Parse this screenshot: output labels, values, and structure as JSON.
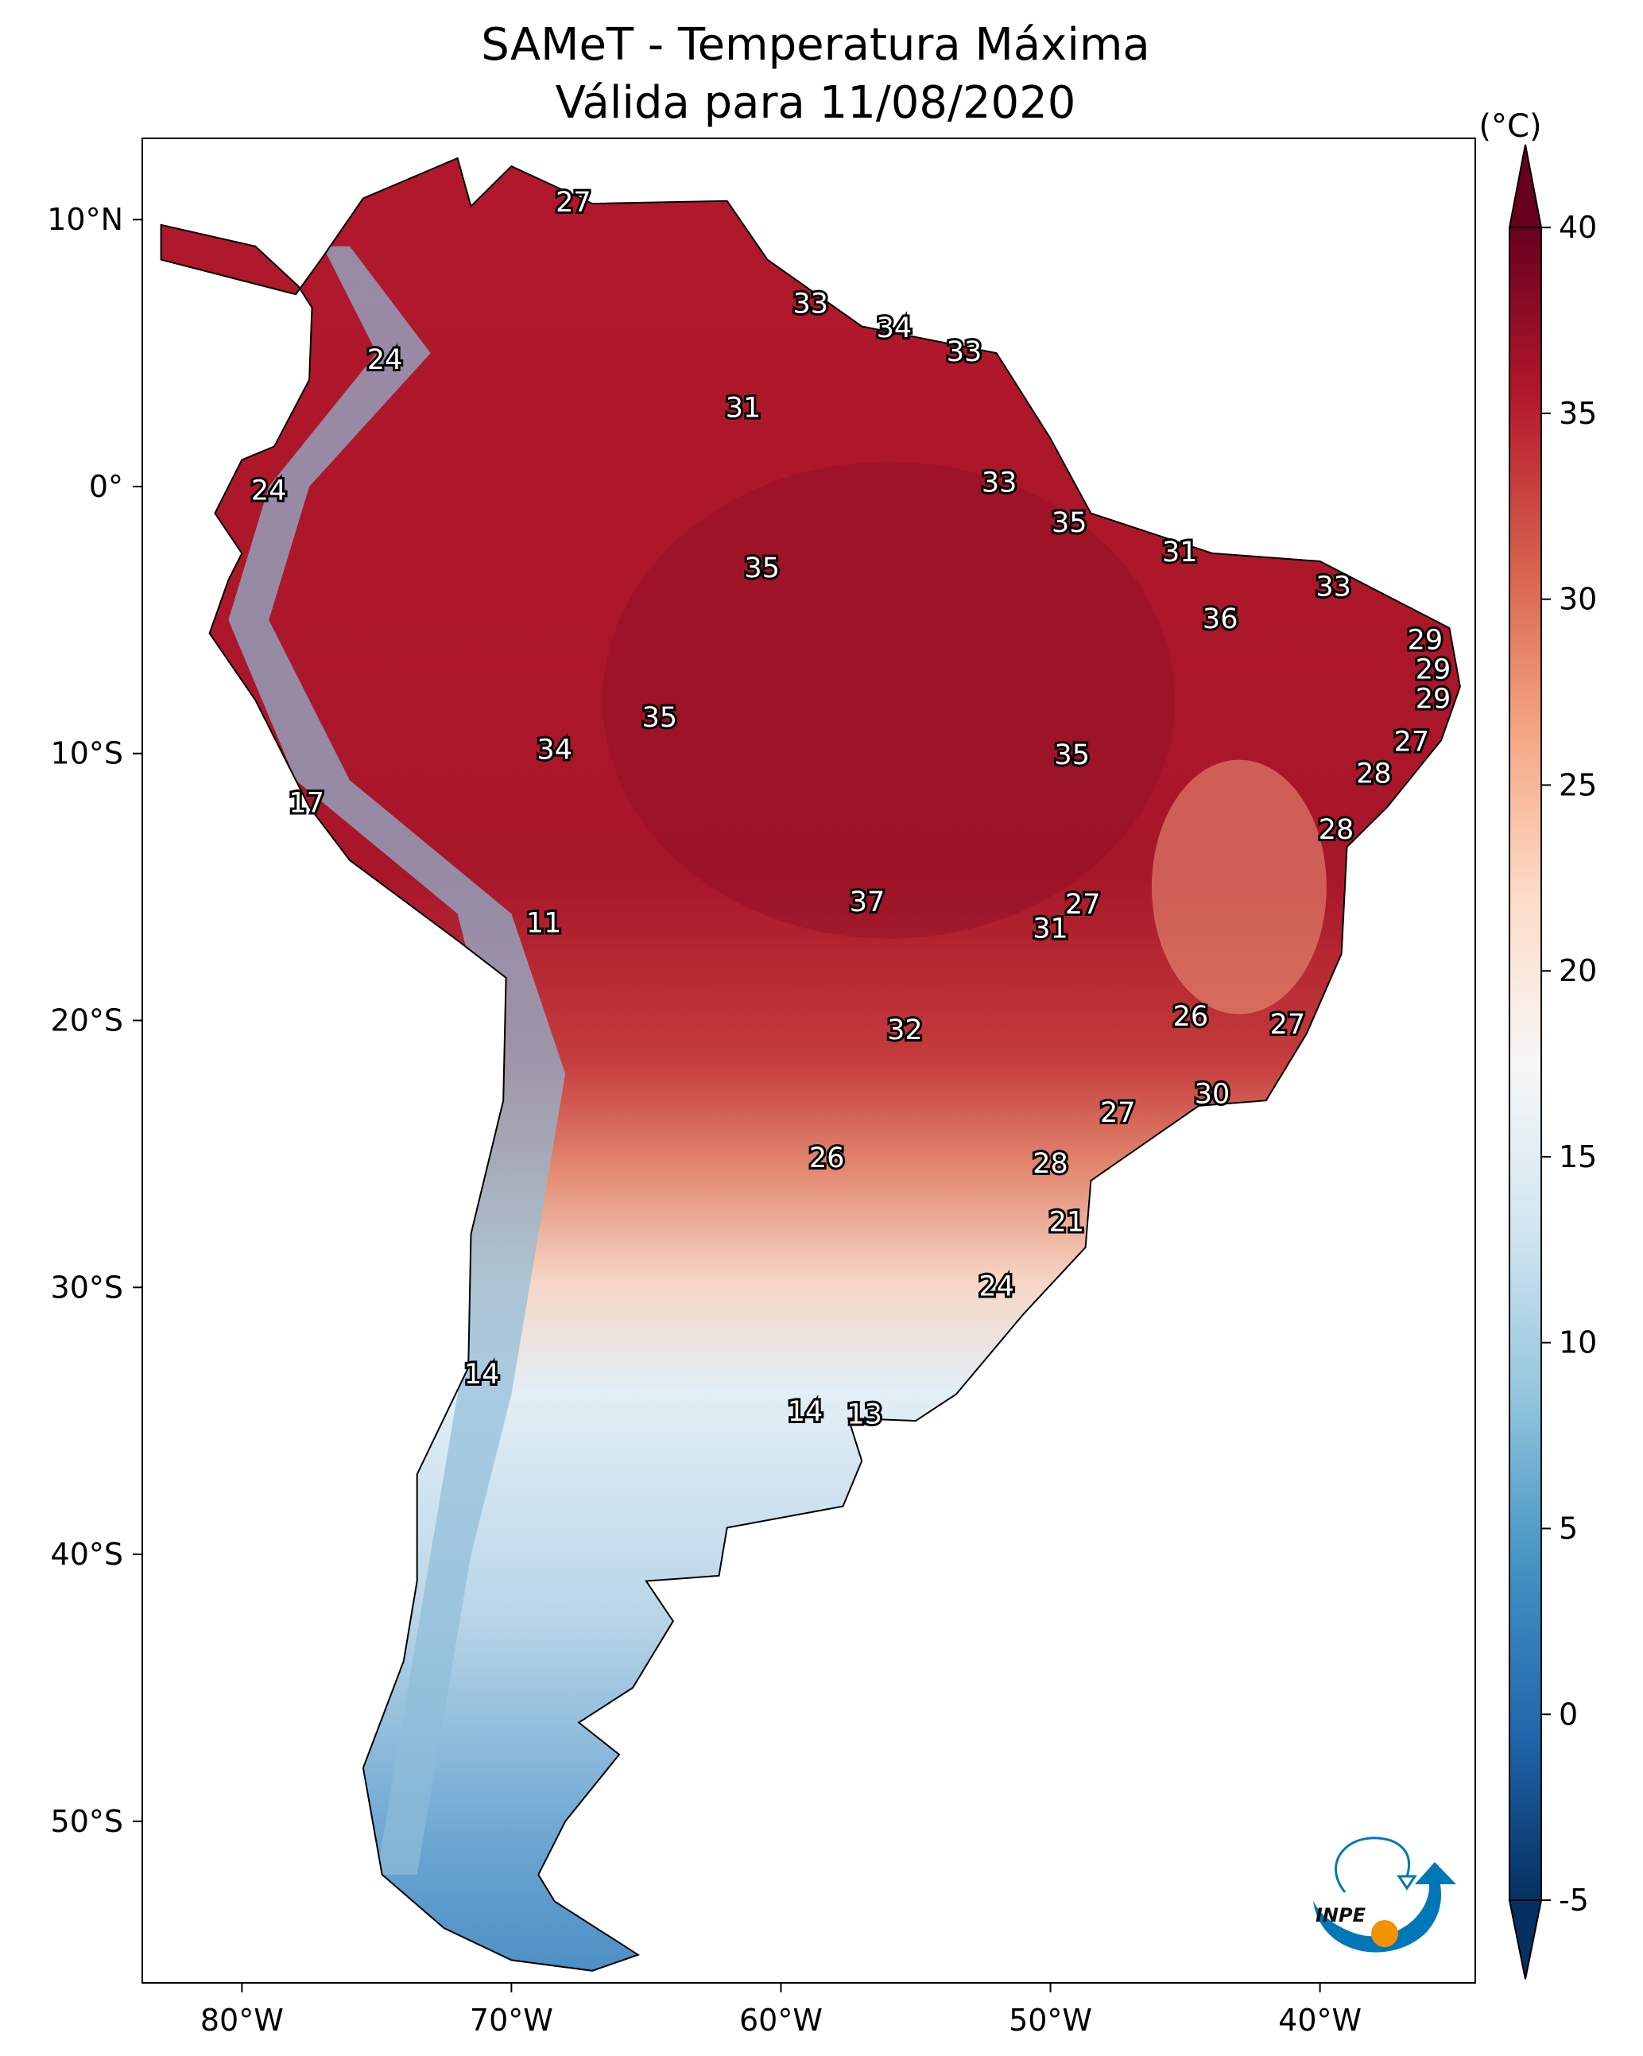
{
  "title": {
    "line1": "SAMeT - Temperatura Máxima",
    "line2": "Válida para 11/08/2020"
  },
  "colorbar": {
    "unit": "(°C)",
    "ticks": [
      "40",
      "35",
      "30",
      "25",
      "20",
      "15",
      "10",
      "5",
      "0",
      "-5"
    ],
    "range": [
      -5,
      40
    ],
    "colors": [
      "#053061",
      "#2166ac",
      "#4393c3",
      "#92c5de",
      "#d1e5f0",
      "#f7f7f7",
      "#fddbc7",
      "#f4a582",
      "#d6604d",
      "#b2182b",
      "#67001f"
    ]
  },
  "axes": {
    "x_ticks": [
      {
        "lon": -80,
        "label": "80°W"
      },
      {
        "lon": -70,
        "label": "70°W"
      },
      {
        "lon": -60,
        "label": "60°W"
      },
      {
        "lon": -50,
        "label": "50°W"
      },
      {
        "lon": -40,
        "label": "40°W"
      }
    ],
    "y_ticks": [
      {
        "lat": 10,
        "label": "10°N"
      },
      {
        "lat": 0,
        "label": "0°"
      },
      {
        "lat": -10,
        "label": "10°S"
      },
      {
        "lat": -20,
        "label": "20°S"
      },
      {
        "lat": -30,
        "label": "30°S"
      },
      {
        "lat": -40,
        "label": "40°S"
      },
      {
        "lat": -50,
        "label": "50°S"
      }
    ]
  },
  "logo": {
    "text": "INPE",
    "blue": "#0077b6",
    "orange": "#f39200"
  },
  "city_values": [
    {
      "v": "27",
      "lon": -67.7,
      "lat": 10.6
    },
    {
      "v": "33",
      "lon": -58.9,
      "lat": 6.8
    },
    {
      "v": "34",
      "lon": -55.8,
      "lat": 5.9
    },
    {
      "v": "33",
      "lon": -53.2,
      "lat": 5.0
    },
    {
      "v": "24",
      "lon": -74.7,
      "lat": 4.7
    },
    {
      "v": "31",
      "lon": -61.4,
      "lat": 2.9
    },
    {
      "v": "24",
      "lon": -79.0,
      "lat": -0.2
    },
    {
      "v": "33",
      "lon": -51.9,
      "lat": 0.1
    },
    {
      "v": "35",
      "lon": -49.3,
      "lat": -1.4
    },
    {
      "v": "31",
      "lon": -45.2,
      "lat": -2.5
    },
    {
      "v": "35",
      "lon": -60.7,
      "lat": -3.1
    },
    {
      "v": "33",
      "lon": -39.5,
      "lat": -3.8
    },
    {
      "v": "36",
      "lon": -43.7,
      "lat": -5.0
    },
    {
      "v": "29",
      "lon": -36.1,
      "lat": -5.8
    },
    {
      "v": "29",
      "lon": -35.8,
      "lat": -6.9
    },
    {
      "v": "29",
      "lon": -35.8,
      "lat": -8.0
    },
    {
      "v": "35",
      "lon": -64.5,
      "lat": -8.7
    },
    {
      "v": "27",
      "lon": -36.6,
      "lat": -9.6
    },
    {
      "v": "34",
      "lon": -68.4,
      "lat": -9.9
    },
    {
      "v": "35",
      "lon": -49.2,
      "lat": -10.1
    },
    {
      "v": "28",
      "lon": -38.0,
      "lat": -10.8
    },
    {
      "v": "17",
      "lon": -77.6,
      "lat": -11.9
    },
    {
      "v": "28",
      "lon": -39.4,
      "lat": -12.9
    },
    {
      "v": "37",
      "lon": -56.8,
      "lat": -15.6
    },
    {
      "v": "27",
      "lon": -48.8,
      "lat": -15.7
    },
    {
      "v": "31",
      "lon": -50.0,
      "lat": -16.6
    },
    {
      "v": "11",
      "lon": -68.8,
      "lat": -16.4
    },
    {
      "v": "26",
      "lon": -44.8,
      "lat": -19.9
    },
    {
      "v": "27",
      "lon": -41.2,
      "lat": -20.2
    },
    {
      "v": "32",
      "lon": -55.4,
      "lat": -20.4
    },
    {
      "v": "30",
      "lon": -44.0,
      "lat": -22.8
    },
    {
      "v": "27",
      "lon": -47.5,
      "lat": -23.5
    },
    {
      "v": "26",
      "lon": -58.3,
      "lat": -25.2
    },
    {
      "v": "28",
      "lon": -50.0,
      "lat": -25.4
    },
    {
      "v": "21",
      "lon": -49.4,
      "lat": -27.6
    },
    {
      "v": "24",
      "lon": -52.0,
      "lat": -30.0
    },
    {
      "v": "14",
      "lon": -71.1,
      "lat": -33.3
    },
    {
      "v": "14",
      "lon": -59.1,
      "lat": -34.7
    },
    {
      "v": "13",
      "lon": -56.9,
      "lat": -34.8
    }
  ]
}
